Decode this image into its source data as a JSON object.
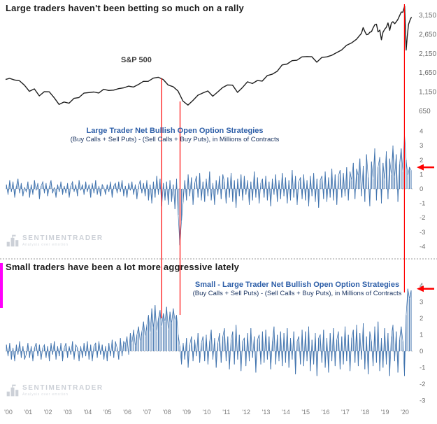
{
  "titles": {
    "top": "Large traders haven't been betting so much on a rally",
    "bottom": "Small traders have been a lot more aggressive lately"
  },
  "panels": {
    "sp500": {
      "label": "S&P 500"
    },
    "large": {
      "title": "Large Trader Net Bullish Open Option Strategies",
      "subtitle": "(Buy Calls + Sell Puts) - (Sell Calls + Buy Puts), in Millions of Contracts"
    },
    "small": {
      "title": "Small - Large Trader Net Bullish Open Option Strategies",
      "subtitle": "(Buy Calls + Sell Puts) - (Sell Calls + Buy Puts), in Millions of Contracts"
    }
  },
  "watermark": {
    "name": "SENTIMENTRADER",
    "tagline": "Analysis over emotion"
  },
  "colors": {
    "sp500": "#1f1f1f",
    "series": "#3f72ad",
    "red": "#fe0000",
    "axis": "#6b6b6b",
    "tick": "#7a7a7a",
    "zero": "#bbbbbb",
    "separator": "#9a9a9a",
    "titleBlue": "#2e5fa8",
    "subtitleNavy": "#1f3864",
    "watermark": "#c7ccd3",
    "magenta": "#ff00fb"
  },
  "x_axis": {
    "labels": [
      "'00",
      "'01",
      "'02",
      "'03",
      "'04",
      "'05",
      "'06",
      "'07",
      "'08",
      "'09",
      "'10",
      "'11",
      "'12",
      "'13",
      "'14",
      "'15",
      "'16",
      "'17",
      "'18",
      "'19",
      "'20"
    ],
    "years": [
      2000,
      2001,
      2002,
      2003,
      2004,
      2005,
      2006,
      2007,
      2008,
      2009,
      2010,
      2011,
      2012,
      2013,
      2014,
      2015,
      2016,
      2017,
      2018,
      2019,
      2020
    ]
  },
  "annotations": {
    "vlines": [
      {
        "year": 2007.87
      },
      {
        "year": 2008.8
      },
      {
        "year": 2020.12
      }
    ],
    "arrows": [
      {
        "panel": "large",
        "value": 1.5
      },
      {
        "panel": "small",
        "value": 3.8
      }
    ]
  },
  "chart_data": [
    {
      "id": "sp500",
      "type": "line",
      "name": "S&P 500",
      "ylim": [
        400,
        3400
      ],
      "yticks": [
        3150,
        2650,
        2150,
        1650,
        1150,
        650
      ],
      "ytick_labels": [
        "3,150",
        "2,650",
        "2,150",
        "1,650",
        "1,150",
        "650"
      ],
      "x": [
        2000.0,
        2000.2,
        2000.45,
        2000.7,
        2000.95,
        2001.2,
        2001.45,
        2001.7,
        2001.95,
        2002.2,
        2002.45,
        2002.7,
        2002.95,
        2003.2,
        2003.45,
        2003.7,
        2003.95,
        2004.2,
        2004.45,
        2004.7,
        2004.95,
        2005.2,
        2005.45,
        2005.7,
        2005.95,
        2006.2,
        2006.45,
        2006.7,
        2006.95,
        2007.2,
        2007.45,
        2007.7,
        2007.95,
        2008.2,
        2008.45,
        2008.7,
        2008.95,
        2009.2,
        2009.45,
        2009.7,
        2009.95,
        2010.2,
        2010.45,
        2010.7,
        2010.95,
        2011.2,
        2011.45,
        2011.7,
        2011.95,
        2012.2,
        2012.45,
        2012.7,
        2012.95,
        2013.2,
        2013.45,
        2013.7,
        2013.95,
        2014.2,
        2014.45,
        2014.7,
        2014.95,
        2015.2,
        2015.45,
        2015.7,
        2015.95,
        2016.2,
        2016.45,
        2016.7,
        2016.95,
        2017.2,
        2017.45,
        2017.7,
        2017.95,
        2018.04,
        2018.13,
        2018.21,
        2018.29,
        2018.38,
        2018.46,
        2018.54,
        2018.63,
        2018.71,
        2018.79,
        2018.88,
        2018.96,
        2019.04,
        2019.13,
        2019.21,
        2019.29,
        2019.38,
        2019.46,
        2019.54,
        2019.63,
        2019.71,
        2019.79,
        2019.88,
        2019.96,
        2020.04,
        2020.13,
        2020.21,
        2020.26,
        2020.33,
        2020.42,
        2020.48
      ],
      "y": [
        1469,
        1498,
        1455,
        1436,
        1320,
        1160,
        1224,
        1041,
        1148,
        1147,
        990,
        815,
        880,
        848,
        975,
        996,
        1112,
        1126,
        1141,
        1115,
        1212,
        1181,
        1191,
        1229,
        1248,
        1295,
        1270,
        1336,
        1418,
        1421,
        1503,
        1527,
        1468,
        1323,
        1280,
        1166,
        903,
        798,
        919,
        1057,
        1115,
        1169,
        1031,
        1141,
        1258,
        1326,
        1321,
        1131,
        1258,
        1408,
        1362,
        1441,
        1426,
        1569,
        1606,
        1682,
        1848,
        1872,
        1960,
        1972,
        2059,
        2068,
        2063,
        1920,
        2044,
        2060,
        2099,
        2168,
        2239,
        2363,
        2423,
        2519,
        2674,
        2824,
        2714,
        2641,
        2648,
        2705,
        2718,
        2816,
        2902,
        2914,
        2712,
        2760,
        2507,
        2704,
        2784,
        2834,
        2946,
        2752,
        2942,
        2980,
        2926,
        2977,
        3038,
        3141,
        3231,
        3226,
        3386,
        2237,
        2585,
        2912,
        3044,
        3100
      ]
    },
    {
      "id": "large_trader",
      "type": "bar",
      "name": "Large Trader Net Bullish Open Option Strategies (Millions of Contracts)",
      "x_start": 2000,
      "x_step": "monthly",
      "ylim": [
        -4.3,
        4.3
      ],
      "yticks": [
        4,
        3,
        2,
        1,
        0,
        -1,
        -2,
        -3,
        -4
      ],
      "values": [
        0.3,
        -0.4,
        0.6,
        -0.2,
        0.5,
        -0.6,
        0.2,
        0.7,
        -0.3,
        0.4,
        -0.5,
        0.1,
        -0.2,
        0.5,
        -0.6,
        0.3,
        -0.4,
        0.6,
        -0.1,
        0.4,
        -0.7,
        0.2,
        0.5,
        -0.3,
        0.4,
        -0.5,
        0.2,
        0.6,
        -0.3,
        0.1,
        -0.6,
        0.3,
        -0.2,
        0.5,
        -0.4,
        0.2,
        -0.3,
        0.4,
        -0.6,
        0.2,
        0.5,
        -0.2,
        0.3,
        -0.5,
        0.6,
        -0.1,
        0.3,
        -0.4,
        0.5,
        -0.2,
        0.3,
        -0.6,
        0.4,
        -0.3,
        0.6,
        -0.4,
        0.2,
        -0.5,
        0.3,
        0.1,
        -0.4,
        0.3,
        -0.2,
        0.5,
        -0.6,
        0.2,
        0.4,
        -0.3,
        0.5,
        -0.2,
        0.6,
        -0.5,
        0.2,
        -0.6,
        0.4,
        -0.1,
        0.5,
        -0.4,
        0.3,
        -0.7,
        0.2,
        0.6,
        -0.3,
        0.4,
        -0.5,
        0.6,
        -0.8,
        0.3,
        -1.0,
        0.5,
        -0.6,
        0.9,
        -0.4,
        0.7,
        -1.2,
        0.4,
        -0.8,
        0.5,
        -1.1,
        0.6,
        -0.9,
        0.3,
        -1.4,
        0.7,
        -1.8,
        -3.9,
        -2.2,
        -0.9,
        0.6,
        -0.8,
        1.0,
        -0.5,
        0.8,
        -1.1,
        0.4,
        0.9,
        -0.6,
        1.1,
        -0.8,
        0.5,
        -0.9,
        0.7,
        -0.5,
        1.2,
        -0.8,
        0.4,
        -1.1,
        0.6,
        -0.4,
        0.9,
        -0.7,
        1.0,
        0.5,
        -1.0,
        0.8,
        -0.6,
        1.1,
        -0.9,
        0.6,
        -1.3,
        0.7,
        -0.5,
        1.0,
        -0.8,
        0.9,
        -0.4,
        0.6,
        -1.1,
        0.5,
        -0.8,
        1.2,
        -0.6,
        0.8,
        -1.0,
        0.4,
        0.7,
        -0.6,
        0.9,
        -0.8,
        0.5,
        -1.2,
        0.7,
        -0.4,
        1.0,
        -0.9,
        0.6,
        -0.7,
        1.1,
        -0.5,
        0.8,
        -1.0,
        0.6,
        -0.8,
        1.3,
        -0.6,
        0.9,
        -1.1,
        0.5,
        0.8,
        -0.7,
        1.0,
        -0.8,
        0.6,
        -1.2,
        0.9,
        -0.5,
        1.1,
        -0.9,
        0.7,
        -1.3,
        0.6,
        0.9,
        -0.7,
        1.2,
        -0.9,
        0.8,
        -0.6,
        1.4,
        -0.8,
        1.0,
        -1.1,
        0.9,
        1.3,
        -0.6,
        1.1,
        -0.5,
        1.5,
        -0.8,
        1.2,
        0.6,
        1.8,
        -0.7,
        1.4,
        0.9,
        2.1,
        -0.5,
        1.6,
        -0.9,
        2.4,
        0.8,
        -1.2,
        1.9,
        0.7,
        2.8,
        -0.8,
        1.5,
        2.2,
        -1.0,
        1.8,
        0.6,
        2.6,
        -0.7,
        2.1,
        1.0,
        3.0,
        0.8,
        2.4,
        -0.9,
        1.7,
        2.8,
        1.2,
        3.8,
        2.0,
        0.9,
        1.5,
        1.3
      ]
    },
    {
      "id": "small_minus_large",
      "type": "bar",
      "name": "Small - Large Trader Net Bullish Open Option Strategies (Millions of Contracts)",
      "x_start": 2000,
      "x_step": "monthly",
      "ylim": [
        -3.4,
        4.3
      ],
      "yticks": [
        4,
        3,
        2,
        1,
        0,
        -1,
        -2,
        -3
      ],
      "values": [
        0.4,
        -0.3,
        0.5,
        -0.5,
        0.2,
        -0.6,
        0.4,
        -0.2,
        0.6,
        -0.4,
        0.3,
        -0.5,
        -0.2,
        0.5,
        -0.4,
        0.3,
        -0.6,
        0.2,
        0.5,
        -0.3,
        0.4,
        -0.5,
        0.2,
        0.4,
        -0.4,
        0.3,
        -0.6,
        0.5,
        -0.2,
        0.6,
        -0.5,
        0.3,
        -0.3,
        0.5,
        -0.6,
        0.2,
        0.5,
        -0.4,
        0.3,
        -0.2,
        0.6,
        -0.5,
        0.4,
        0.2,
        -0.6,
        0.3,
        -0.4,
        0.5,
        -0.3,
        0.6,
        -0.5,
        0.4,
        -0.6,
        0.3,
        0.5,
        -0.4,
        0.6,
        -0.2,
        0.4,
        -0.5,
        0.3,
        -0.6,
        0.5,
        -0.3,
        0.7,
        -0.4,
        0.6,
        0.2,
        -0.5,
        0.8,
        -0.3,
        0.6,
        0.4,
        0.9,
        -0.2,
        1.1,
        0.5,
        1.3,
        0.3,
        1.0,
        1.5,
        0.6,
        1.2,
        1.8,
        0.9,
        1.6,
        2.2,
        1.1,
        2.6,
        1.4,
        2.8,
        1.2,
        2.0,
        2.5,
        1.5,
        2.3,
        1.8,
        2.7,
        1.3,
        2.4,
        1.7,
        2.6,
        1.9,
        2.2,
        1.0,
        0.3,
        -0.8,
        0.5,
        -0.5,
        0.8,
        -1.0,
        0.4,
        0.9,
        -0.6,
        0.7,
        -0.3,
        1.1,
        -0.7,
        0.5,
        0.9,
        -0.6,
        1.0,
        -0.8,
        0.6,
        1.3,
        -0.5,
        0.8,
        -1.0,
        0.5,
        1.1,
        -0.7,
        0.9,
        1.4,
        -0.6,
        0.9,
        -1.1,
        0.7,
        1.2,
        -0.8,
        1.6,
        -0.5,
        1.0,
        -1.2,
        0.6,
        0.8,
        -0.9,
        1.1,
        -0.6,
        1.4,
        -0.4,
        0.9,
        -1.3,
        0.7,
        1.0,
        -0.8,
        1.2,
        -0.7,
        1.3,
        -0.5,
        0.9,
        -1.1,
        0.6,
        1.5,
        -0.8,
        1.0,
        -0.6,
        1.2,
        -0.9,
        1.1,
        -0.7,
        1.4,
        -1.0,
        0.8,
        -0.5,
        1.2,
        -1.4,
        0.6,
        0.9,
        -0.8,
        1.3,
        -0.9,
        1.2,
        -0.6,
        1.5,
        -1.2,
        0.7,
        -0.8,
        1.1,
        -1.5,
        0.8,
        1.0,
        -0.7,
        1.3,
        -1.0,
        0.8,
        -1.3,
        1.1,
        -0.6,
        1.4,
        -0.9,
        0.7,
        1.2,
        -1.1,
        0.9,
        -0.8,
        1.5,
        -0.6,
        1.0,
        -1.2,
        0.8,
        1.3,
        -0.7,
        1.6,
        -0.9,
        1.1,
        -0.5,
        1.7,
        -1.1,
        0.9,
        -1.4,
        1.2,
        0.6,
        -0.9,
        1.5,
        -0.7,
        1.8,
        -1.2,
        0.8,
        -1.0,
        1.4,
        -0.8,
        1.1,
        -1.5,
        0.9,
        1.6,
        -0.6,
        1.2,
        -1.3,
        0.7,
        1.5,
        0.6,
        -1.5,
        2.2,
        3.8,
        3.2,
        3.7
      ]
    }
  ]
}
